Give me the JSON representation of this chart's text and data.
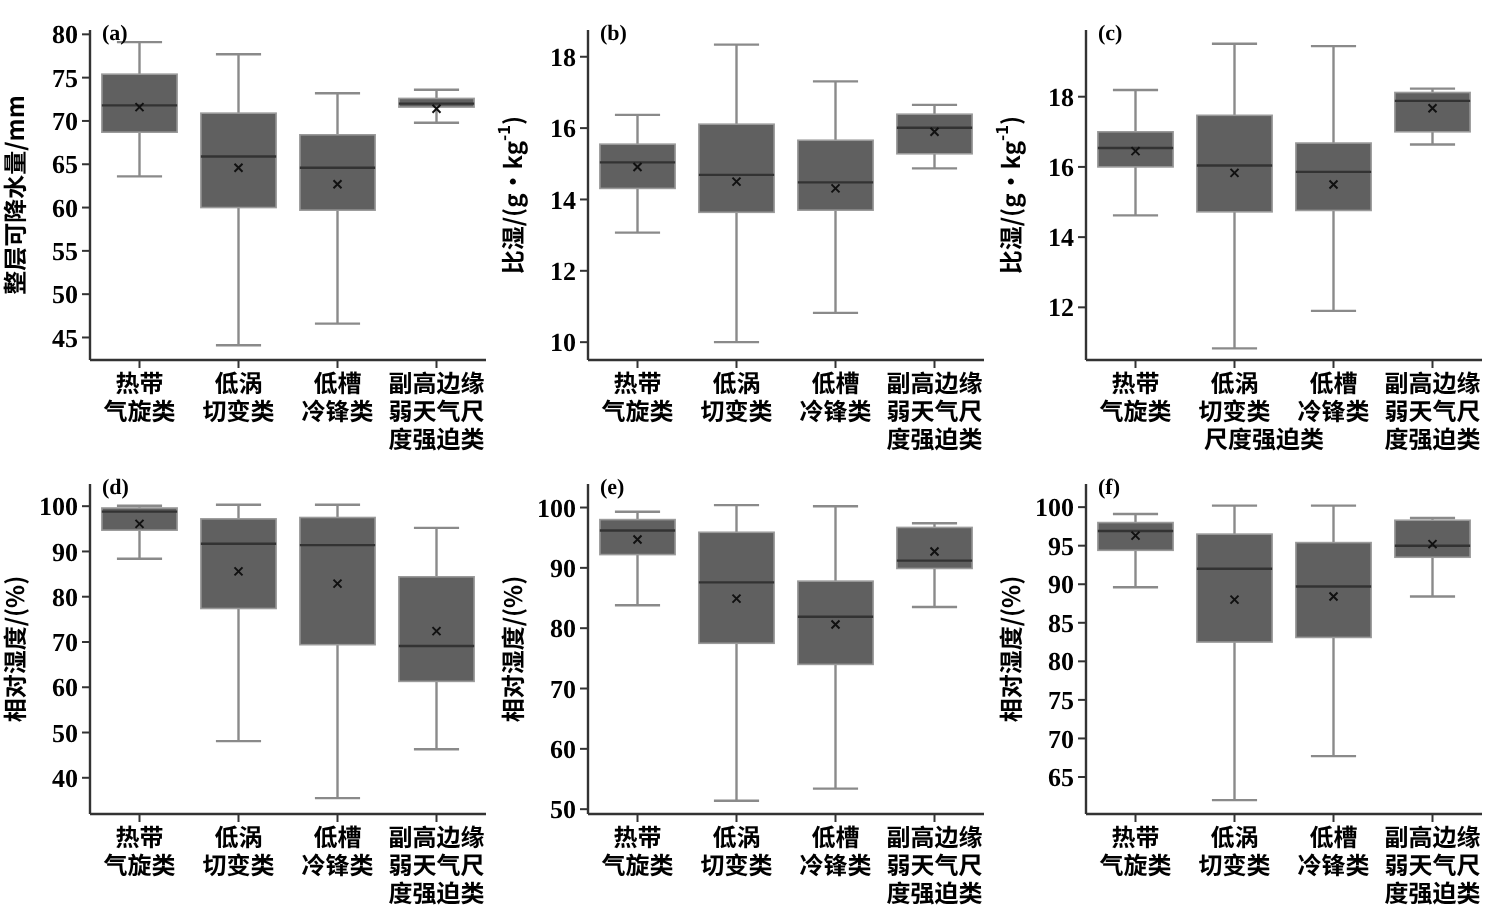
{
  "chart_data": [
    {
      "type": "box",
      "title": "(a)",
      "ylabel": "整层可降水量/mm",
      "categories": [
        "热带气旋类",
        "低涡切变类",
        "低槽冷锋类",
        "副高边缘弱天气尺度强迫类"
      ],
      "color": "#606060",
      "ylim": [
        42.4,
        80.5
      ],
      "yticks": [
        45,
        50,
        55,
        60,
        65,
        70,
        75,
        80
      ],
      "boxes": [
        {
          "low": 63.6,
          "q1": 68.7,
          "median": 71.8,
          "q3": 75.4,
          "high": 79.1,
          "mean": 71.6
        },
        {
          "low": 44.1,
          "q1": 60.0,
          "median": 65.9,
          "q3": 70.9,
          "high": 77.7,
          "mean": 64.6
        },
        {
          "low": 46.6,
          "q1": 59.7,
          "median": 64.6,
          "q3": 68.4,
          "high": 73.2,
          "mean": 62.7
        },
        {
          "low": 69.8,
          "q1": 71.6,
          "median": 72.0,
          "q3": 72.6,
          "high": 73.6,
          "mean": 71.4
        }
      ]
    },
    {
      "type": "box",
      "title": "(b)",
      "ylabel": "比湿/(g·kg$^{-1}$)",
      "categories": [
        "热带气旋类",
        "低涡切变类",
        "低槽冷锋类",
        "副高边缘弱天气尺度强迫类"
      ],
      "color": "#606060",
      "ylim": [
        9.5,
        18.75
      ],
      "yticks": [
        10,
        12,
        14,
        16,
        18
      ],
      "boxes": [
        {
          "low": 13.07,
          "q1": 14.31,
          "median": 15.04,
          "q3": 15.55,
          "high": 16.37,
          "mean": 14.91
        },
        {
          "low": 10.0,
          "q1": 13.64,
          "median": 14.69,
          "q3": 16.11,
          "high": 18.34,
          "mean": 14.5
        },
        {
          "low": 10.82,
          "q1": 13.7,
          "median": 14.48,
          "q3": 15.66,
          "high": 17.31,
          "mean": 14.31
        },
        {
          "low": 14.87,
          "q1": 15.28,
          "median": 16.01,
          "q3": 16.39,
          "high": 16.65,
          "mean": 15.9
        }
      ]
    },
    {
      "type": "box",
      "title": "(c)",
      "ylabel": "比湿/(g·kg$^{-1}$)",
      "categories": [
        "热带气旋类",
        "低涡切变类",
        "低槽冷锋类",
        "副高边缘弱天气尺度强迫类"
      ],
      "color": "#606060",
      "ylim": [
        10.5,
        19.9
      ],
      "yticks": [
        12,
        14,
        16,
        18
      ],
      "annotations": [
        "尺度强迫类"
      ],
      "boxes": [
        {
          "low": 14.62,
          "q1": 16.0,
          "median": 16.54,
          "q3": 17.0,
          "high": 18.19,
          "mean": 16.45
        },
        {
          "low": 10.83,
          "q1": 14.72,
          "median": 16.04,
          "q3": 17.47,
          "high": 19.51,
          "mean": 15.83
        },
        {
          "low": 11.9,
          "q1": 14.76,
          "median": 15.86,
          "q3": 16.68,
          "high": 19.44,
          "mean": 15.5
        },
        {
          "low": 16.64,
          "q1": 17.0,
          "median": 17.88,
          "q3": 18.12,
          "high": 18.23,
          "mean": 17.67
        }
      ]
    },
    {
      "type": "box",
      "title": "(d)",
      "ylabel": "相对湿度/(%)",
      "categories": [
        "热带气旋类",
        "低涡切变类",
        "低槽冷锋类",
        "副高边缘弱天气尺度强迫类"
      ],
      "color": "#606060",
      "ylim": [
        32,
        104.9
      ],
      "yticks": [
        40,
        50,
        60,
        70,
        80,
        90,
        100
      ],
      "boxes": [
        {
          "low": 88.4,
          "q1": 94.7,
          "median": 98.8,
          "q3": 99.6,
          "high": 100.1,
          "mean": 96.1
        },
        {
          "low": 48.1,
          "q1": 77.4,
          "median": 91.7,
          "q3": 97.2,
          "high": 100.3,
          "mean": 85.6
        },
        {
          "low": 35.5,
          "q1": 69.4,
          "median": 91.4,
          "q3": 97.5,
          "high": 100.3,
          "mean": 82.9
        },
        {
          "low": 46.3,
          "q1": 61.3,
          "median": 69.1,
          "q3": 84.4,
          "high": 95.2,
          "mean": 72.4
        }
      ]
    },
    {
      "type": "box",
      "title": "(e)",
      "ylabel": "相对湿度/(%)",
      "categories": [
        "热带气旋类",
        "低涡切变类",
        "低槽冷锋类",
        "副高边缘弱天气尺度强迫类"
      ],
      "color": "#606060",
      "ylim": [
        49.2,
        103.9
      ],
      "yticks": [
        50,
        60,
        70,
        80,
        90,
        100
      ],
      "boxes": [
        {
          "low": 83.8,
          "q1": 92.2,
          "median": 96.2,
          "q3": 98.0,
          "high": 99.3,
          "mean": 94.7
        },
        {
          "low": 51.4,
          "q1": 77.5,
          "median": 87.6,
          "q3": 95.9,
          "high": 100.4,
          "mean": 84.9
        },
        {
          "low": 53.4,
          "q1": 74.0,
          "median": 81.9,
          "q3": 87.8,
          "high": 100.2,
          "mean": 80.6
        },
        {
          "low": 83.5,
          "q1": 89.9,
          "median": 91.2,
          "q3": 96.7,
          "high": 97.4,
          "mean": 92.7
        }
      ]
    },
    {
      "type": "box",
      "title": "(f)",
      "ylabel": "相对湿度/(%)",
      "categories": [
        "热带气旋类",
        "低涡切变类",
        "低槽冷锋类",
        "副高边缘弱天气尺度强迫类"
      ],
      "color": "#606060",
      "ylim": [
        60.2,
        103.0
      ],
      "yticks": [
        65,
        70,
        75,
        80,
        85,
        90,
        95,
        100
      ],
      "boxes": [
        {
          "low": 89.6,
          "q1": 94.4,
          "median": 96.9,
          "q3": 98.0,
          "high": 99.1,
          "mean": 96.3
        },
        {
          "low": 62.0,
          "q1": 82.5,
          "median": 92.0,
          "q3": 96.5,
          "high": 100.2,
          "mean": 88.0
        },
        {
          "low": 67.7,
          "q1": 83.1,
          "median": 89.7,
          "q3": 95.4,
          "high": 100.2,
          "mean": 88.4
        },
        {
          "low": 88.4,
          "q1": 93.5,
          "median": 95.0,
          "q3": 98.3,
          "high": 98.6,
          "mean": 95.2
        }
      ]
    }
  ]
}
